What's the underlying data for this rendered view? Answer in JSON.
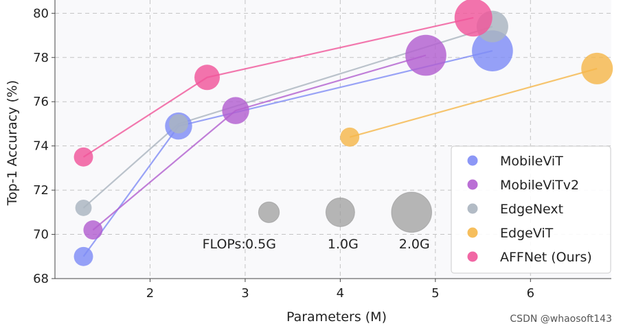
{
  "chart_data": {
    "type": "scatter",
    "xlabel": "Parameters (M)",
    "ylabel": "Top-1 Accuracy (%)",
    "xlim": [
      1.0,
      6.85
    ],
    "ylim": [
      68,
      80.6
    ],
    "xticks": [
      2,
      3,
      4,
      5,
      6
    ],
    "yticks": [
      68,
      70,
      72,
      74,
      76,
      78,
      80
    ],
    "grid": true,
    "legend_position": "bottom-right",
    "series": [
      {
        "name": "MobileViT",
        "color": "#7f8cf5",
        "x": [
          1.3,
          2.3,
          5.6
        ],
        "y": [
          69.0,
          74.9,
          78.3
        ],
        "flops": [
          0.3,
          0.7,
          1.8
        ]
      },
      {
        "name": "MobileViTv2",
        "color": "#b25fd0",
        "x": [
          1.4,
          2.9,
          4.9
        ],
        "y": [
          70.2,
          75.6,
          78.1
        ],
        "flops": [
          0.3,
          0.7,
          1.8
        ]
      },
      {
        "name": "EdgeNext",
        "color": "#aab4bf",
        "x": [
          1.3,
          2.3,
          5.6
        ],
        "y": [
          71.2,
          75.0,
          79.4
        ],
        "flops": [
          0.2,
          0.3,
          1.0
        ]
      },
      {
        "name": "EdgeViT",
        "color": "#f5b74a",
        "x": [
          4.1,
          6.7
        ],
        "y": [
          74.4,
          77.5
        ],
        "flops": [
          0.3,
          1.0
        ]
      },
      {
        "name": "AFFNet (Ours)",
        "color": "#f0569a",
        "x": [
          1.3,
          2.6,
          5.4
        ],
        "y": [
          73.5,
          77.1,
          79.8
        ],
        "flops": [
          0.3,
          0.6,
          1.5
        ]
      }
    ],
    "flops_scale": {
      "label": "FLOPs:",
      "color": "#9e9e9e",
      "entries": [
        {
          "flops": 0.5,
          "label": "0.5G",
          "x": 3.25
        },
        {
          "flops": 1.0,
          "label": "1.0G",
          "x": 4.0
        },
        {
          "flops": 2.0,
          "label": "2.0G",
          "x": 4.75
        }
      ],
      "y": 71.0
    }
  },
  "watermark": "CSDN @whaosoft143"
}
